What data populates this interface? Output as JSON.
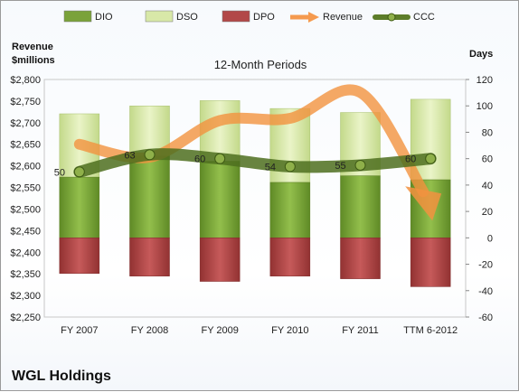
{
  "chart_data": {
    "type": "bar",
    "title": "12-Month Periods",
    "company": "WGL Holdings",
    "left_axis_label_line1": "Revenue",
    "left_axis_label_line2": "$millions",
    "right_axis_label": "Days",
    "categories": [
      "FY 2007",
      "FY 2008",
      "FY 2009",
      "FY 2010",
      "FY 2011",
      "TTM 6-2012"
    ],
    "left_ticks": [
      "$2,250",
      "$2,300",
      "$2,350",
      "$2,400",
      "$2,450",
      "$2,500",
      "$2,550",
      "$2,600",
      "$2,650",
      "$2,700",
      "$2,750",
      "$2,800"
    ],
    "right_ticks": [
      "-60",
      "-40",
      "-20",
      "0",
      "20",
      "40",
      "60",
      "80",
      "100",
      "120"
    ],
    "ylim_left": [
      2250,
      2800
    ],
    "ylim_right": [
      -60,
      120
    ],
    "stacked": true,
    "legend_position": "top",
    "legend": [
      {
        "name": "DIO",
        "kind": "bar",
        "color": "#7aa23a"
      },
      {
        "name": "DSO",
        "kind": "bar",
        "color": "#d8e8a8"
      },
      {
        "name": "DPO",
        "kind": "bar",
        "color": "#b24848"
      },
      {
        "name": "Revenue",
        "kind": "arrow",
        "color": "#f59a4e"
      },
      {
        "name": "CCC",
        "kind": "line",
        "color": "#5d7d2a"
      }
    ],
    "series": [
      {
        "name": "DIO",
        "axis": "right",
        "values": [
          46,
          62,
          58,
          42,
          47,
          44
        ]
      },
      {
        "name": "DSO",
        "axis": "right",
        "values": [
          48,
          38,
          46,
          56,
          48,
          61
        ]
      },
      {
        "name": "DPO",
        "axis": "right",
        "values": [
          -27,
          -29,
          -33,
          -29,
          -31,
          -37
        ]
      },
      {
        "name": "Revenue",
        "axis": "left",
        "values": [
          2650,
          2620,
          2705,
          2710,
          2770,
          2490
        ]
      },
      {
        "name": "CCC",
        "axis": "right",
        "values": [
          50,
          63,
          60,
          54,
          55,
          60
        ]
      }
    ],
    "ccc_labels": [
      "50",
      "63",
      "60",
      "54",
      "55",
      "60"
    ]
  }
}
